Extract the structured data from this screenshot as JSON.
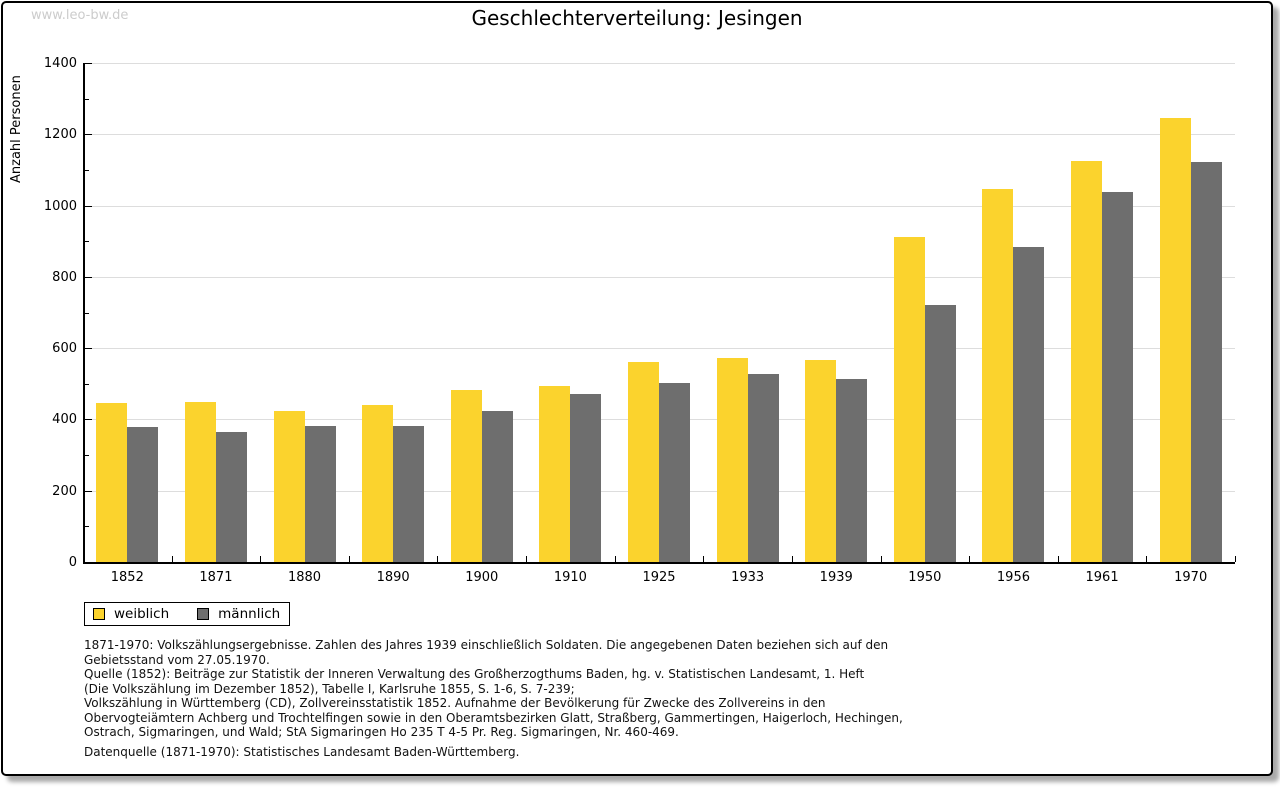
{
  "page": {
    "watermark": "www.leo-bw.de",
    "title": "Geschlechterverteilung: Jesingen"
  },
  "chart_data": {
    "type": "bar",
    "title": "Geschlechterverteilung: Jesingen",
    "xlabel": "",
    "ylabel": "Anzahl Personen",
    "ylim": [
      0,
      1400
    ],
    "y_major_step": 200,
    "y_minor_step": 100,
    "grid": true,
    "legend_position": "bottom-left",
    "categories": [
      "1852",
      "1871",
      "1880",
      "1890",
      "1900",
      "1910",
      "1925",
      "1933",
      "1939",
      "1950",
      "1956",
      "1961",
      "1970"
    ],
    "series": [
      {
        "name": "weiblich",
        "color": "#FBD32D",
        "values": [
          447,
          450,
          423,
          441,
          482,
          494,
          561,
          573,
          568,
          911,
          1046,
          1125,
          1247
        ]
      },
      {
        "name": "männlich",
        "color": "#6E6E6E",
        "values": [
          378,
          365,
          382,
          381,
          423,
          472,
          502,
          527,
          513,
          721,
          884,
          1038,
          1122
        ]
      }
    ]
  },
  "footnotes": {
    "lines": [
      "1871-1970: Volkszählungsergebnisse. Zahlen des Jahres 1939 einschließlich Soldaten. Die angegebenen Daten beziehen sich auf den",
      "Gebietsstand vom 27.05.1970.",
      "Quelle (1852): Beiträge zur Statistik der Inneren Verwaltung des Großherzogthums Baden, hg. v. Statistischen Landesamt, 1. Heft",
      "(Die Volkszählung im Dezember 1852), Tabelle I, Karlsruhe 1855, S. 1-6, S. 7-239;",
      "Volkszählung in Württemberg (CD), Zollvereinsstatistik 1852. Aufnahme der Bevölkerung für Zwecke des Zollvereins in den",
      "Obervogteiämtern Achberg und Trochtelfingen sowie in den Oberamtsbezirken Glatt, Straßberg, Gammertingen, Haigerloch, Hechingen,",
      "Ostrach, Sigmaringen, und Wald; StA Sigmaringen Ho 235 T 4-5 Pr. Reg. Sigmaringen, Nr. 460-469."
    ],
    "datasource": "Datenquelle (1871-1970): Statistisches Landesamt Baden-Württemberg."
  },
  "colors": {
    "gridline": "#DDDDDD",
    "axis": "#000000",
    "watermark": "#CCCCCC",
    "shadow": "#AAAAAA",
    "background": "#FFFFFF"
  }
}
